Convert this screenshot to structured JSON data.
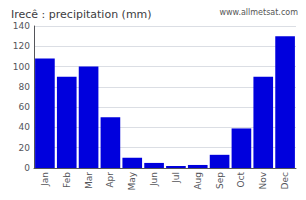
{
  "chart_data": {
    "type": "bar",
    "title": "Irecê : precipitation (mm)",
    "categories": [
      "Jan",
      "Feb",
      "Mar",
      "Apr",
      "May",
      "Jun",
      "Jul",
      "Aug",
      "Sep",
      "Oct",
      "Nov",
      "Dec"
    ],
    "values": [
      108,
      90,
      100,
      50,
      10,
      5,
      2,
      3,
      13,
      39,
      90,
      130
    ],
    "color": "#0000dd",
    "ylim": [
      0,
      140
    ],
    "yticks": [
      0,
      20,
      40,
      60,
      80,
      100,
      120,
      140
    ],
    "grid": true,
    "annotations": [
      "www.allmetsat.com"
    ]
  }
}
